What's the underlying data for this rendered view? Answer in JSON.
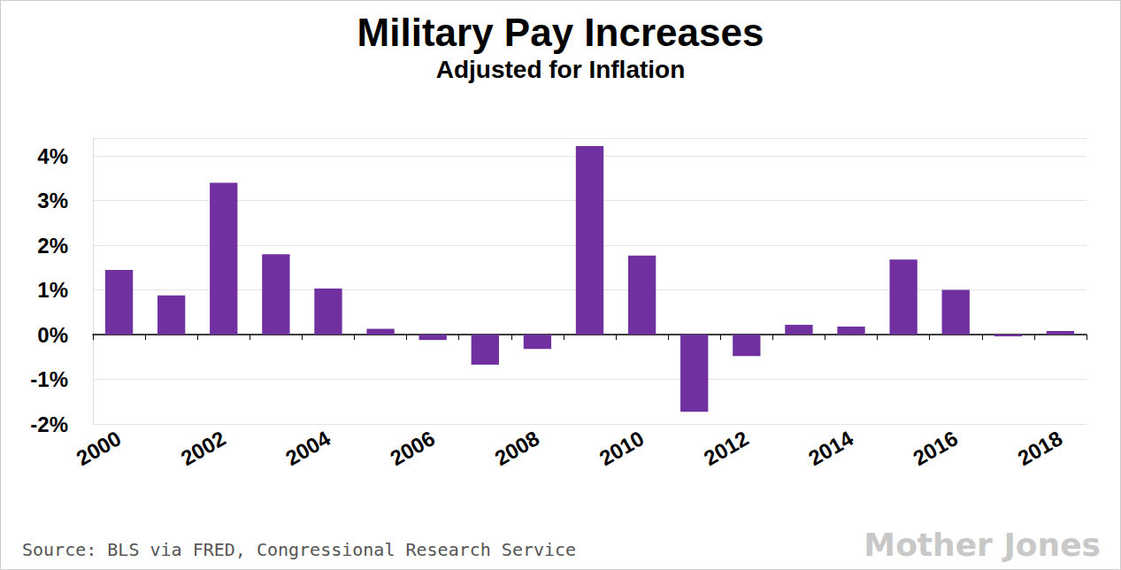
{
  "chart_data": {
    "type": "bar",
    "title": "Military Pay Increases",
    "subtitle": "Adjusted for Inflation",
    "source": "Source: BLS via FRED, Congressional Research Service",
    "logo": "Mother Jones",
    "categories": [
      "2000",
      null,
      "2002",
      null,
      "2004",
      null,
      "2006",
      null,
      "2008",
      null,
      "2010",
      null,
      "2012",
      null,
      "2014",
      null,
      "2016",
      null,
      "2018"
    ],
    "values": [
      1.45,
      0.88,
      3.4,
      1.8,
      1.03,
      0.13,
      -0.12,
      -0.67,
      -0.32,
      4.22,
      1.77,
      -1.73,
      -0.48,
      0.22,
      0.18,
      1.68,
      1.0,
      -0.04,
      0.08
    ],
    "color": "#7030a0",
    "ylim": [
      -2,
      4.4
    ],
    "yticks": [
      {
        "value": -2,
        "label": "-2%"
      },
      {
        "value": -1,
        "label": "-1%"
      },
      {
        "value": 0,
        "label": "0%"
      },
      {
        "value": 1,
        "label": "1%"
      },
      {
        "value": 2,
        "label": "2%"
      },
      {
        "value": 3,
        "label": "3%"
      },
      {
        "value": 4,
        "label": "4%"
      }
    ],
    "grid": true
  }
}
